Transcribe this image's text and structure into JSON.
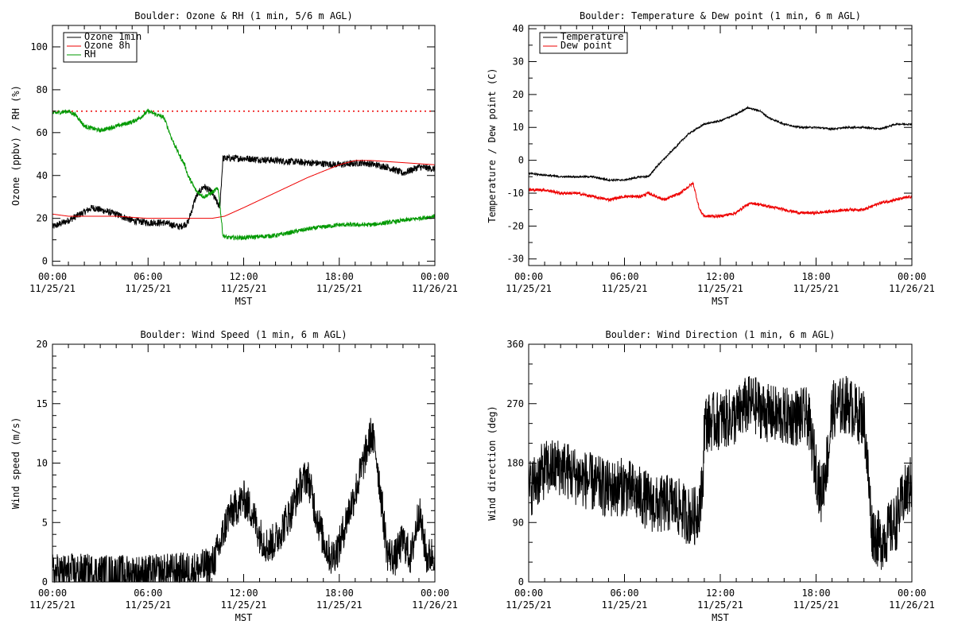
{
  "chart_data": [
    {
      "id": "ozone",
      "type": "line",
      "title": "Boulder: Ozone & RH (1 min, 5/6 m AGL)",
      "xlabel": "MST",
      "ylabel": "Ozone (ppbv) / RH (%)",
      "xlim": [
        0,
        24
      ],
      "ylim": [
        -2,
        110
      ],
      "yticks": [
        0,
        20,
        40,
        60,
        80,
        100
      ],
      "yminor": 10,
      "legend_position": "top-left",
      "legend": [
        {
          "label": "Ozone 1min",
          "color": "#000000"
        },
        {
          "label": "Ozone 8h",
          "color": "#ee0000"
        },
        {
          "label": "RH",
          "color": "#009900"
        }
      ],
      "reference_line": {
        "y": 70,
        "color": "#ee0000",
        "style": "dotted"
      },
      "series": [
        {
          "name": "Ozone 1min",
          "color": "#000000",
          "noise": 1.6,
          "x": [
            0,
            1,
            2,
            2.5,
            3,
            4,
            5,
            6,
            7,
            8,
            8.5,
            9,
            9.5,
            10,
            10.5,
            10.7,
            11,
            12,
            14,
            16,
            18,
            19.5,
            21,
            22,
            23,
            24
          ],
          "y": [
            16,
            19,
            23,
            25,
            24,
            22,
            19,
            18,
            18,
            16,
            18,
            30,
            35,
            32,
            25,
            48,
            48,
            48,
            47,
            46,
            45,
            46,
            44,
            41,
            44,
            43
          ]
        },
        {
          "name": "Ozone 8h",
          "color": "#ee0000",
          "noise": 0,
          "x": [
            0,
            1,
            2,
            4,
            6,
            8,
            10,
            10.8,
            12,
            14,
            16,
            18,
            19,
            20,
            22,
            24
          ],
          "y": [
            22,
            21,
            21,
            21,
            20,
            20,
            20,
            21,
            25,
            32,
            39,
            45,
            47,
            47,
            46,
            45
          ]
        },
        {
          "name": "RH",
          "color": "#009900",
          "noise": 1.0,
          "x": [
            0,
            1,
            1.5,
            2,
            3,
            4,
            5,
            5.5,
            6,
            7,
            7.5,
            8,
            8.3,
            8.5,
            9,
            9.5,
            10,
            10.4,
            10.7,
            11,
            12,
            14,
            16,
            18,
            20,
            22,
            24
          ],
          "y": [
            69,
            70,
            68,
            63,
            61,
            63,
            65,
            67,
            70,
            67,
            57,
            49,
            45,
            40,
            33,
            30,
            32,
            34,
            12,
            11,
            11,
            12,
            15,
            17,
            17,
            19,
            21
          ]
        }
      ]
    },
    {
      "id": "temp",
      "type": "line",
      "title": "Boulder: Temperature & Dew point (1 min, 6 m AGL)",
      "xlabel": "MST",
      "ylabel": "Temperature / Dew point (C)",
      "xlim": [
        0,
        24
      ],
      "ylim": [
        -32,
        41
      ],
      "yticks": [
        -30,
        -20,
        -10,
        0,
        10,
        20,
        30,
        40
      ],
      "yminor": 5,
      "legend_position": "top-left",
      "legend": [
        {
          "label": "Temperature",
          "color": "#000000"
        },
        {
          "label": "Dew point",
          "color": "#ee0000"
        }
      ],
      "series": [
        {
          "name": "Temperature",
          "color": "#000000",
          "noise": 0.25,
          "x": [
            0,
            2,
            4,
            5,
            6,
            7,
            7.5,
            8,
            9,
            10,
            11,
            12,
            12.5,
            13,
            13.7,
            14.5,
            15,
            16,
            17,
            18,
            19,
            20,
            21,
            22,
            23,
            24
          ],
          "y": [
            -4,
            -5,
            -5,
            -6,
            -6,
            -5,
            -5,
            -2,
            3,
            8,
            11,
            12,
            13,
            14,
            16,
            15,
            13,
            11,
            10,
            10,
            9.5,
            10,
            10,
            9.5,
            11,
            11
          ]
        },
        {
          "name": "Dew point",
          "color": "#ee0000",
          "noise": 0.45,
          "x": [
            0,
            1,
            2,
            3,
            4,
            5,
            6,
            7,
            7.5,
            8,
            8.5,
            9,
            9.5,
            10,
            10.3,
            10.7,
            11,
            12,
            13,
            13.5,
            14,
            15,
            16,
            17,
            18,
            20,
            21,
            22,
            23,
            24
          ],
          "y": [
            -9,
            -9,
            -10,
            -10,
            -11,
            -12,
            -11,
            -11,
            -10,
            -11,
            -12,
            -11,
            -10,
            -8,
            -7,
            -15,
            -17,
            -17,
            -16,
            -14,
            -13,
            -14,
            -15,
            -16,
            -16,
            -15,
            -15,
            -13,
            -12,
            -11
          ]
        }
      ]
    },
    {
      "id": "wspd",
      "type": "line",
      "title": "Boulder: Wind Speed (1 min, 6 m AGL)",
      "xlabel": "MST",
      "ylabel": "Wind speed (m/s)",
      "xlim": [
        0,
        24
      ],
      "ylim": [
        0,
        20
      ],
      "yticks": [
        0,
        5,
        10,
        15,
        20
      ],
      "yminor": 1,
      "series": [
        {
          "name": "",
          "color": "#000000",
          "noise": 1.6,
          "x": [
            0,
            2,
            4,
            6,
            8,
            9,
            10,
            10.5,
            11,
            12,
            12.5,
            13,
            13.5,
            14,
            15,
            15.5,
            16,
            16.5,
            17,
            17.5,
            18,
            18.5,
            19,
            19.5,
            20,
            20.3,
            20.8,
            21,
            21.5,
            22,
            22.5,
            23,
            23.5,
            24
          ],
          "y": [
            0.8,
            0.8,
            0.7,
            0.7,
            0.9,
            1.0,
            1.4,
            3.0,
            5.5,
            7.0,
            6.0,
            4.0,
            3.0,
            3.5,
            6.0,
            8.0,
            9.0,
            6.0,
            3.5,
            2.0,
            3.0,
            5.5,
            7.5,
            10.0,
            12.5,
            11.0,
            5.0,
            2.5,
            2.0,
            3.5,
            2.0,
            6.0,
            2.0,
            2.5
          ]
        }
      ]
    },
    {
      "id": "wdir",
      "type": "line",
      "title": "Boulder: Wind Direction (1 min, 6 m AGL)",
      "xlabel": "MST",
      "ylabel": "Wind direction (deg)",
      "xlim": [
        0,
        24
      ],
      "ylim": [
        0,
        360
      ],
      "yticks": [
        0,
        90,
        180,
        270,
        360
      ],
      "yminor": 30,
      "series": [
        {
          "name": "",
          "color": "#000000",
          "noise": 45,
          "x": [
            0,
            1,
            2,
            3,
            4,
            5,
            6,
            7,
            8,
            9,
            10,
            10.5,
            10.9,
            11,
            12,
            13,
            13.5,
            14,
            14.5,
            15,
            16,
            17,
            17.5,
            17.8,
            18.3,
            18.8,
            19,
            19.5,
            20,
            20.5,
            21,
            21.5,
            22,
            23,
            23.5,
            24
          ],
          "y": [
            140,
            170,
            175,
            160,
            150,
            140,
            145,
            130,
            115,
            120,
            100,
            100,
            140,
            240,
            245,
            250,
            265,
            270,
            262,
            255,
            250,
            250,
            250,
            200,
            130,
            200,
            260,
            265,
            270,
            255,
            250,
            80,
            60,
            90,
            130,
            150
          ]
        }
      ]
    }
  ],
  "x_tick_labels": [
    {
      "time": "00:00",
      "date": "11/25/21"
    },
    {
      "time": "06:00",
      "date": "11/25/21"
    },
    {
      "time": "12:00",
      "date": "11/25/21"
    },
    {
      "time": "18:00",
      "date": "11/25/21"
    },
    {
      "time": "00:00",
      "date": "11/26/21"
    }
  ]
}
